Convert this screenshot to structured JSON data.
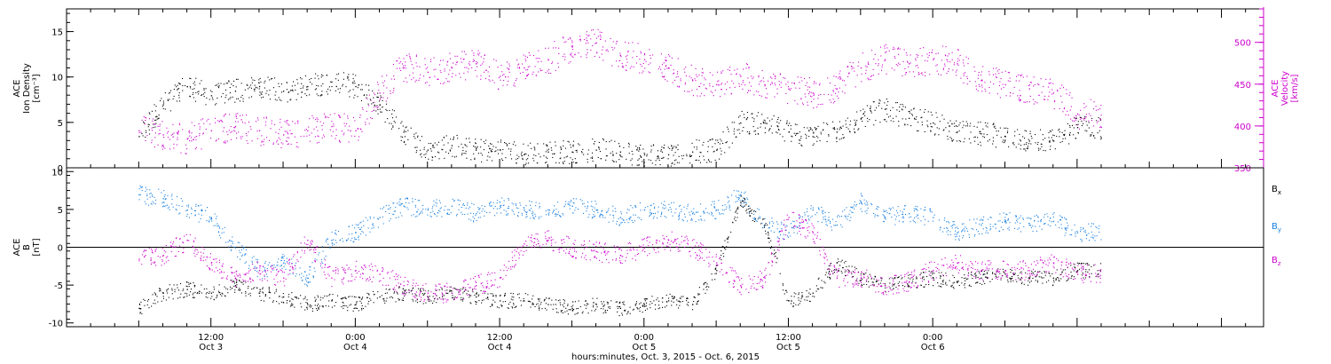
{
  "colors": {
    "black": "#000000",
    "magenta": "#cc00cc",
    "blue": "#1a80e0"
  },
  "chart_data": [
    {
      "type": "scatter",
      "panel": "top",
      "left_axis": {
        "label_lines": [
          "ACE",
          "Ion Density",
          "[cm⁻³]"
        ],
        "ylim": [
          0,
          17.5
        ],
        "ticks": [
          0,
          5,
          10,
          15
        ],
        "tick_labels": [
          "0",
          "5",
          "10",
          "15"
        ]
      },
      "right_axis": {
        "label_lines": [
          "ACE",
          "Velocity",
          "[km/s]"
        ],
        "ylim": [
          350,
          540
        ],
        "ticks": [
          350,
          400,
          450,
          500
        ],
        "tick_labels": [
          "350",
          "400",
          "450",
          "500"
        ]
      },
      "series": [
        {
          "axis": "left",
          "color": "#000000",
          "x": [
            6,
            8,
            10,
            12,
            14,
            16,
            18,
            20,
            22,
            24,
            26,
            28,
            30,
            32,
            34,
            36,
            38,
            40,
            42,
            44,
            46,
            48,
            50,
            52,
            54,
            56,
            58,
            60,
            62,
            64,
            66,
            68,
            70,
            72,
            74,
            76,
            78,
            80,
            82,
            84
          ],
          "y": [
            3.5,
            7.0,
            9.0,
            8.0,
            8.5,
            9.0,
            8.5,
            9.0,
            9.5,
            9.0,
            7.0,
            4.0,
            2.0,
            2.5,
            2.0,
            2.0,
            1.5,
            1.8,
            1.8,
            2.0,
            1.8,
            1.5,
            1.5,
            1.8,
            2.0,
            5.0,
            5.0,
            4.0,
            3.5,
            4.0,
            5.5,
            6.5,
            5.5,
            5.0,
            4.0,
            3.8,
            3.5,
            3.0,
            3.0,
            4.5
          ]
        },
        {
          "axis": "right",
          "color": "#cc00cc",
          "x": [
            6,
            8,
            10,
            12,
            14,
            16,
            18,
            20,
            22,
            24,
            26,
            28,
            30,
            32,
            34,
            36,
            38,
            40,
            42,
            44,
            46,
            48,
            50,
            52,
            54,
            56,
            58,
            60,
            62,
            64,
            66,
            68,
            70,
            72,
            74,
            76,
            78,
            80,
            82,
            84
          ],
          "y": [
            395,
            390,
            385,
            395,
            400,
            395,
            390,
            395,
            400,
            395,
            440,
            470,
            465,
            470,
            475,
            460,
            470,
            480,
            495,
            500,
            485,
            480,
            470,
            455,
            450,
            460,
            450,
            445,
            440,
            445,
            470,
            480,
            475,
            480,
            475,
            455,
            450,
            445,
            440,
            415
          ]
        }
      ]
    },
    {
      "type": "scatter",
      "panel": "bottom",
      "left_axis": {
        "label_lines": [
          "ACE",
          "B",
          "[nT]"
        ],
        "ylim": [
          -10.5,
          10.5
        ],
        "ticks": [
          -10,
          -5,
          0,
          5,
          10
        ],
        "tick_labels": [
          "-10",
          "-5",
          "0",
          "5",
          "10"
        ]
      },
      "zero_line": 0,
      "series": [
        {
          "name": "B",
          "subscript": "x",
          "color": "#000000",
          "x": [
            6,
            8,
            10,
            12,
            14,
            16,
            18,
            20,
            22,
            24,
            26,
            28,
            30,
            32,
            34,
            36,
            38,
            40,
            42,
            44,
            46,
            48,
            50,
            52,
            54,
            56,
            58,
            60,
            62,
            64,
            66,
            68,
            70,
            72,
            74,
            76,
            78,
            80,
            82,
            84
          ],
          "y": [
            -8.0,
            -6.0,
            -5.5,
            -6.0,
            -5.0,
            -6.0,
            -6.5,
            -7.5,
            -7.0,
            -7.5,
            -6.5,
            -6.0,
            -6.5,
            -6.0,
            -6.5,
            -7.0,
            -7.0,
            -7.5,
            -8.0,
            -7.5,
            -8.0,
            -7.5,
            -7.0,
            -7.5,
            -3.0,
            6.0,
            3.0,
            -7.0,
            -6.0,
            -2.0,
            -4.0,
            -5.0,
            -4.5,
            -4.0,
            -4.5,
            -4.0,
            -3.5,
            -4.0,
            -4.0,
            -3.0
          ]
        },
        {
          "name": "B",
          "subscript": "y",
          "color": "#1a80e0",
          "x": [
            6,
            8,
            10,
            12,
            14,
            16,
            18,
            20,
            22,
            24,
            26,
            28,
            30,
            32,
            34,
            36,
            38,
            40,
            42,
            44,
            46,
            48,
            50,
            52,
            54,
            56,
            58,
            60,
            62,
            64,
            66,
            68,
            70,
            72,
            74,
            76,
            78,
            80,
            82,
            84
          ],
          "y": [
            7.0,
            6.5,
            5.0,
            4.0,
            0.0,
            -3.0,
            -2.0,
            -4.0,
            1.0,
            2.0,
            4.0,
            5.5,
            5.0,
            5.5,
            4.5,
            5.5,
            5.0,
            5.0,
            5.5,
            5.0,
            4.0,
            5.0,
            5.0,
            4.5,
            5.0,
            7.0,
            3.0,
            2.0,
            5.0,
            3.0,
            6.0,
            4.0,
            4.5,
            4.0,
            2.0,
            3.0,
            3.5,
            3.0,
            3.5,
            2.0
          ]
        },
        {
          "name": "B",
          "subscript": "z",
          "color": "#cc00cc",
          "x": [
            6,
            8,
            10,
            12,
            14,
            16,
            18,
            20,
            22,
            24,
            26,
            28,
            30,
            32,
            34,
            36,
            38,
            40,
            42,
            44,
            46,
            48,
            50,
            52,
            54,
            56,
            58,
            60,
            62,
            64,
            66,
            68,
            70,
            72,
            74,
            76,
            78,
            80,
            82,
            84
          ],
          "y": [
            -1.5,
            -1.0,
            1.0,
            -2.0,
            -4.0,
            -3.0,
            -4.0,
            1.0,
            -4.0,
            -3.0,
            -3.5,
            -5.0,
            -6.0,
            -6.0,
            -5.0,
            -4.0,
            0.5,
            1.0,
            0.0,
            -0.5,
            -1.0,
            0.0,
            1.0,
            0.0,
            -2.0,
            -5.0,
            -4.0,
            4.0,
            2.0,
            -4.0,
            -4.0,
            -5.0,
            -4.5,
            -3.0,
            -2.0,
            -3.0,
            -3.0,
            -3.0,
            -2.0,
            -3.5
          ]
        }
      ]
    }
  ],
  "time_axis": {
    "xlim": [
      0,
      99.5
    ],
    "tick_hours": [
      12,
      24,
      36,
      48,
      60,
      72
    ],
    "tick_labels": [
      "12:00",
      "0:00",
      "12:00",
      "0:00",
      "12:00",
      "0:00"
    ],
    "date_labels": [
      "Oct 3",
      "Oct 4",
      "Oct 4",
      "Oct 5",
      "Oct 5",
      "Oct 6"
    ],
    "caption": "hours:minutes, Oct.  3, 2015 - Oct.  6, 2015"
  }
}
